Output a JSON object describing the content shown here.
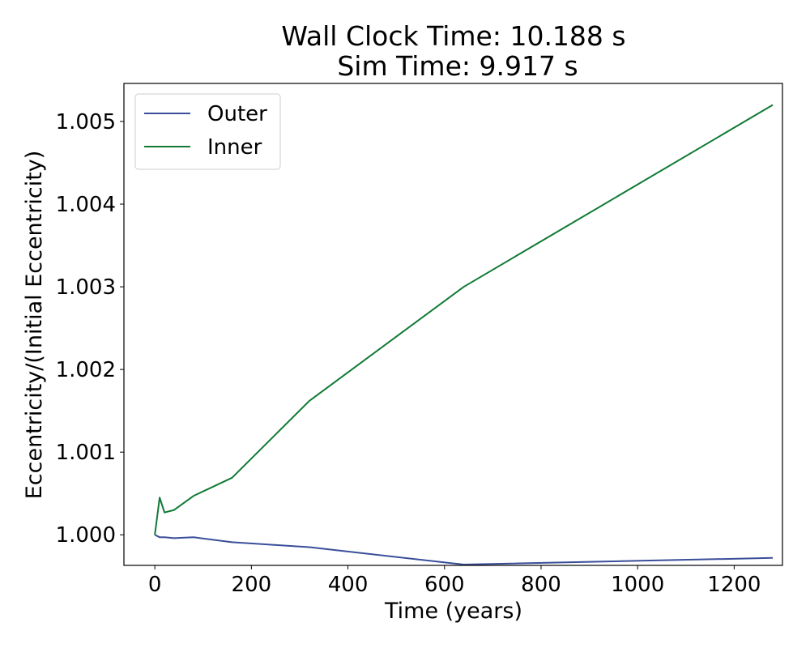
{
  "chart_data": {
    "type": "line",
    "title": [
      "Wall Clock Time: 10.188 s",
      "Sim Time: 9.917 s"
    ],
    "xlabel": "Time (years)",
    "ylabel": "Eccentricity/(Initial Eccentricity)",
    "xlim": [
      -64,
      1300
    ],
    "ylim": [
      0.99963,
      1.00546
    ],
    "xticks": [
      0,
      200,
      400,
      600,
      800,
      1000,
      1200
    ],
    "yticks": [
      1.0,
      1.001,
      1.002,
      1.003,
      1.004,
      1.005
    ],
    "xtick_labels": [
      "0",
      "200",
      "400",
      "600",
      "800",
      "1000",
      "1200"
    ],
    "ytick_labels": [
      "1.000",
      "1.001",
      "1.002",
      "1.003",
      "1.004",
      "1.005"
    ],
    "grid": false,
    "legend_position": "upper-left",
    "series": [
      {
        "name": "Outer",
        "color": "#3a4e9a",
        "x": [
          0,
          10,
          20,
          40,
          80,
          160,
          320,
          640,
          1280
        ],
        "y": [
          1.0,
          0.99997,
          0.99997,
          0.99996,
          0.99997,
          0.99991,
          0.99985,
          0.99964,
          0.99972
        ]
      },
      {
        "name": "Inner",
        "color": "#117a35",
        "x": [
          0,
          10,
          20,
          40,
          80,
          160,
          320,
          640,
          1280
        ],
        "y": [
          1.0,
          1.00045,
          1.00027,
          1.0003,
          1.00047,
          1.00069,
          1.00162,
          1.003,
          1.0052
        ]
      }
    ]
  }
}
